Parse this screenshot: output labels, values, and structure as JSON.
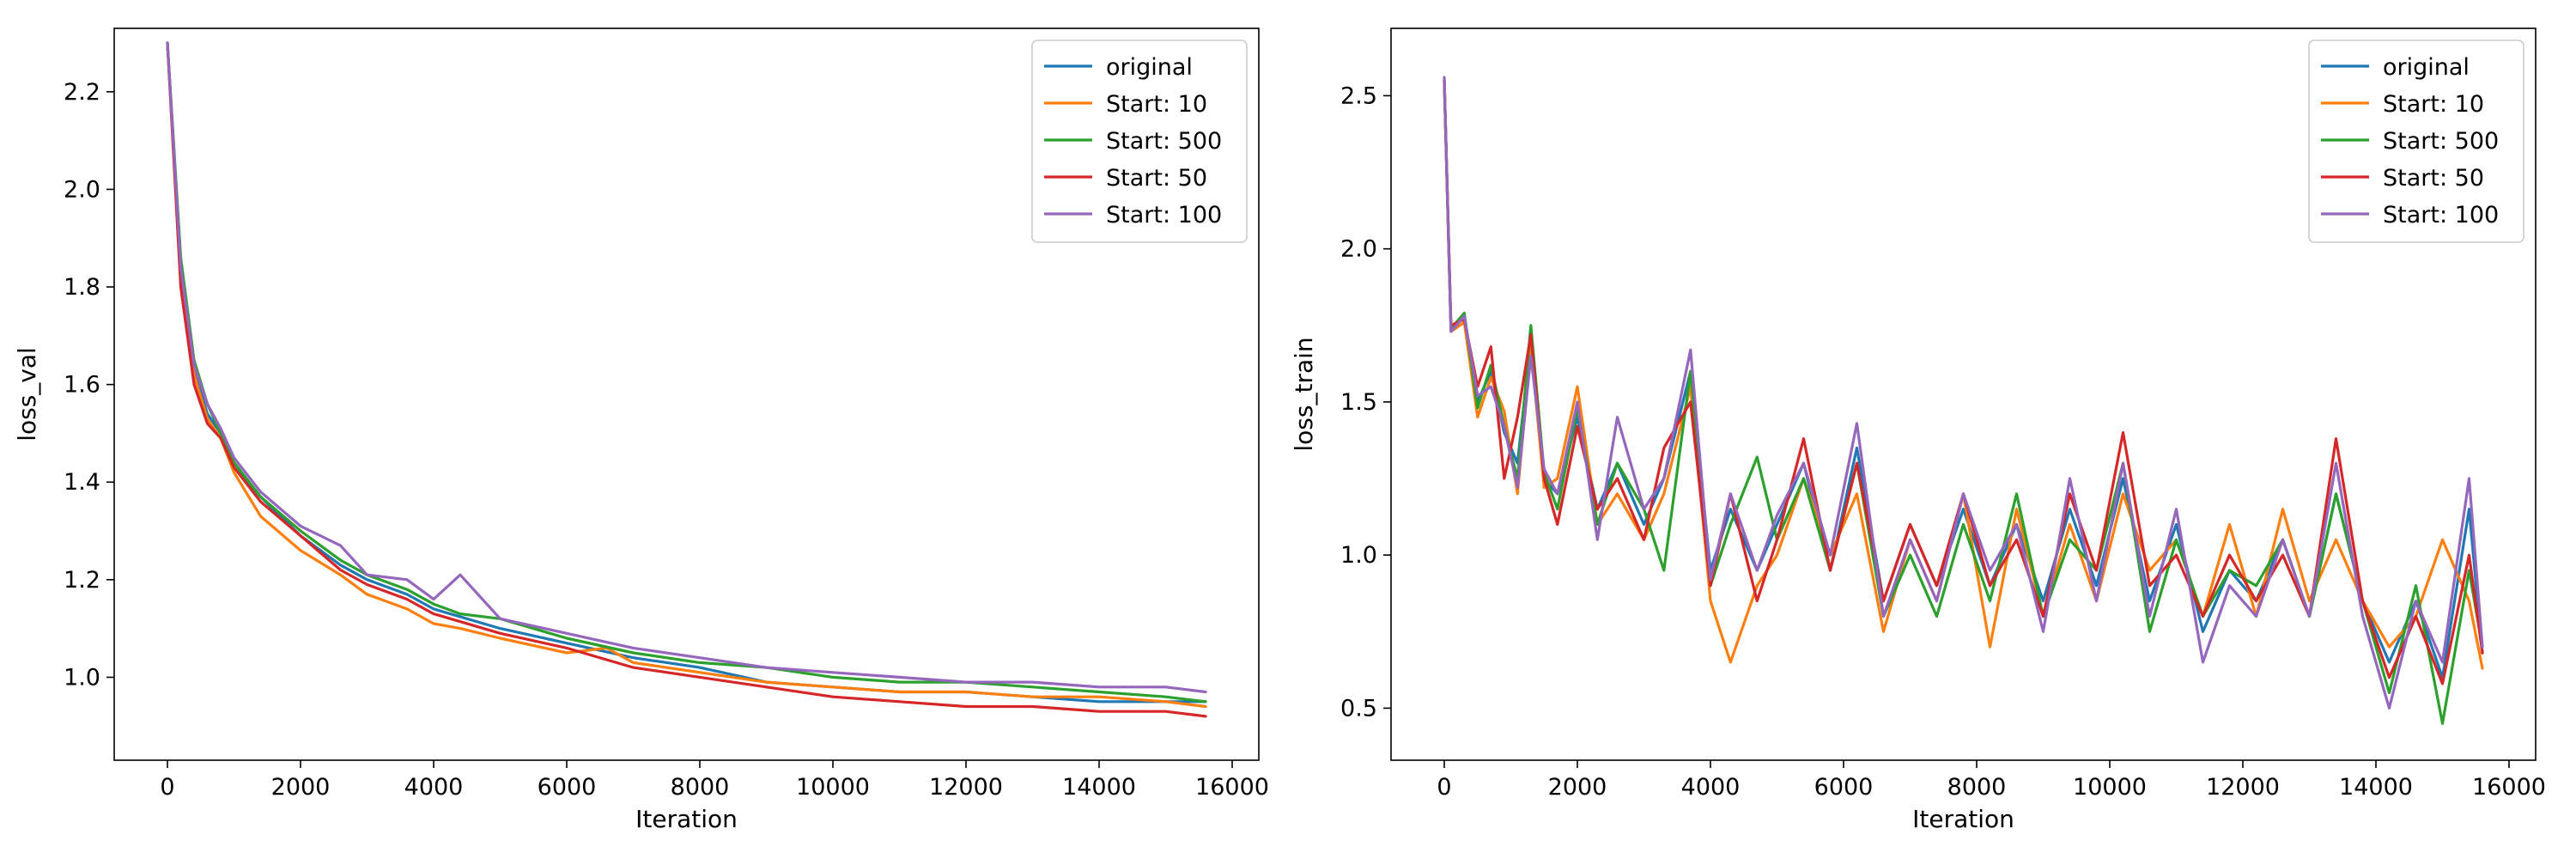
{
  "colors": {
    "original": "#1f77b4",
    "start10": "#ff7f0e",
    "start500": "#2ca02c",
    "start50": "#d62728",
    "start100": "#9467bd"
  },
  "chart_data": [
    {
      "type": "line",
      "title": "",
      "xlabel": "Iteration",
      "ylabel": "loss_val",
      "xlim": [
        -800,
        16400
      ],
      "ylim": [
        0.83,
        2.33
      ],
      "xticks": [
        0,
        2000,
        4000,
        6000,
        8000,
        10000,
        12000,
        14000,
        16000
      ],
      "yticks": [
        1.0,
        1.2,
        1.4,
        1.6,
        1.8,
        2.0,
        2.2
      ],
      "ytick_decimals": 1,
      "grid": false,
      "legend": "top-right",
      "series": [
        {
          "name": "original",
          "color": "#1f77b4",
          "x": [
            0,
            200,
            400,
            600,
            800,
            1000,
            1400,
            2000,
            2600,
            3000,
            3600,
            4000,
            5000,
            6000,
            7000,
            8000,
            9000,
            10000,
            11000,
            12000,
            13000,
            14000,
            15000,
            15600
          ],
          "y": [
            2.3,
            1.83,
            1.63,
            1.54,
            1.5,
            1.43,
            1.37,
            1.29,
            1.23,
            1.2,
            1.17,
            1.14,
            1.1,
            1.07,
            1.04,
            1.02,
            0.99,
            0.98,
            0.97,
            0.97,
            0.96,
            0.95,
            0.95,
            0.95
          ]
        },
        {
          "name": "Start: 10",
          "color": "#ff7f0e",
          "x": [
            0,
            200,
            400,
            600,
            800,
            1000,
            1400,
            2000,
            2600,
            3000,
            3600,
            4000,
            4400,
            5000,
            6000,
            6600,
            7000,
            8000,
            9000,
            10000,
            11000,
            12000,
            13000,
            14000,
            15000,
            15600
          ],
          "y": [
            2.3,
            1.82,
            1.62,
            1.53,
            1.49,
            1.42,
            1.33,
            1.26,
            1.21,
            1.17,
            1.14,
            1.11,
            1.1,
            1.08,
            1.05,
            1.06,
            1.03,
            1.01,
            0.99,
            0.98,
            0.97,
            0.97,
            0.96,
            0.96,
            0.95,
            0.94
          ]
        },
        {
          "name": "Start: 500",
          "color": "#2ca02c",
          "x": [
            0,
            200,
            400,
            600,
            800,
            1000,
            1400,
            2000,
            2600,
            3000,
            3600,
            4000,
            4400,
            5000,
            6000,
            7000,
            8000,
            9000,
            10000,
            11000,
            12000,
            13000,
            14000,
            15000,
            15600
          ],
          "y": [
            2.3,
            1.86,
            1.65,
            1.56,
            1.5,
            1.44,
            1.37,
            1.3,
            1.24,
            1.21,
            1.18,
            1.15,
            1.13,
            1.12,
            1.08,
            1.05,
            1.03,
            1.02,
            1.0,
            0.99,
            0.99,
            0.98,
            0.97,
            0.96,
            0.95
          ]
        },
        {
          "name": "Start: 50",
          "color": "#d62728",
          "x": [
            0,
            200,
            400,
            600,
            800,
            1000,
            1400,
            2000,
            2600,
            3000,
            3600,
            4000,
            5000,
            6000,
            7000,
            8000,
            9000,
            10000,
            11000,
            12000,
            13000,
            14000,
            15000,
            15600
          ],
          "y": [
            2.3,
            1.8,
            1.6,
            1.52,
            1.49,
            1.43,
            1.36,
            1.29,
            1.22,
            1.19,
            1.16,
            1.13,
            1.09,
            1.06,
            1.02,
            1.0,
            0.98,
            0.96,
            0.95,
            0.94,
            0.94,
            0.93,
            0.93,
            0.92
          ]
        },
        {
          "name": "Start: 100",
          "color": "#9467bd",
          "x": [
            0,
            200,
            400,
            600,
            800,
            1000,
            1400,
            2000,
            2600,
            3000,
            3600,
            4000,
            4400,
            5000,
            6000,
            7000,
            8000,
            9000,
            10000,
            11000,
            12000,
            13000,
            14000,
            15000,
            15600
          ],
          "y": [
            2.3,
            1.84,
            1.64,
            1.56,
            1.51,
            1.45,
            1.38,
            1.31,
            1.27,
            1.21,
            1.2,
            1.16,
            1.21,
            1.12,
            1.09,
            1.06,
            1.04,
            1.02,
            1.01,
            1.0,
            0.99,
            0.99,
            0.98,
            0.98,
            0.97
          ]
        }
      ]
    },
    {
      "type": "line",
      "title": "",
      "xlabel": "Iteration",
      "ylabel": "loss_train",
      "xlim": [
        -800,
        16400
      ],
      "ylim": [
        0.33,
        2.72
      ],
      "xticks": [
        0,
        2000,
        4000,
        6000,
        8000,
        10000,
        12000,
        14000,
        16000
      ],
      "yticks": [
        0.5,
        1.0,
        1.5,
        2.0,
        2.5
      ],
      "ytick_decimals": 1,
      "grid": false,
      "legend": "top-right",
      "series": [
        {
          "name": "original",
          "color": "#1f77b4",
          "x": [
            0,
            100,
            300,
            500,
            700,
            900,
            1100,
            1300,
            1500,
            1700,
            2000,
            2300,
            2600,
            3000,
            3300,
            3700,
            4000,
            4300,
            4700,
            5000,
            5400,
            5800,
            6200,
            6600,
            7000,
            7400,
            7800,
            8200,
            8600,
            9000,
            9400,
            9800,
            10200,
            10600,
            11000,
            11400,
            11800,
            12200,
            12600,
            13000,
            13400,
            13800,
            14200,
            14600,
            15000,
            15400,
            15600
          ],
          "y": [
            2.55,
            1.74,
            1.78,
            1.5,
            1.6,
            1.4,
            1.3,
            1.7,
            1.25,
            1.2,
            1.45,
            1.15,
            1.3,
            1.1,
            1.25,
            1.6,
            0.95,
            1.15,
            0.95,
            1.1,
            1.3,
            0.95,
            1.35,
            0.85,
            1.1,
            0.9,
            1.15,
            0.9,
            1.1,
            0.85,
            1.15,
            0.9,
            1.25,
            0.85,
            1.1,
            0.75,
            0.95,
            0.85,
            1.05,
            0.8,
            1.2,
            0.85,
            0.65,
            0.85,
            0.6,
            1.15,
            0.68
          ]
        },
        {
          "name": "Start: 10",
          "color": "#ff7f0e",
          "x": [
            0,
            100,
            300,
            500,
            700,
            900,
            1100,
            1300,
            1500,
            1700,
            2000,
            2300,
            2600,
            3000,
            3300,
            3700,
            4000,
            4300,
            4700,
            5000,
            5400,
            5800,
            6200,
            6600,
            7000,
            7400,
            7800,
            8200,
            8600,
            9000,
            9400,
            9800,
            10200,
            10600,
            11000,
            11400,
            11800,
            12200,
            12600,
            13000,
            13400,
            13800,
            14200,
            14600,
            15000,
            15400,
            15600
          ],
          "y": [
            2.55,
            1.73,
            1.76,
            1.45,
            1.58,
            1.47,
            1.2,
            1.68,
            1.22,
            1.25,
            1.55,
            1.1,
            1.2,
            1.05,
            1.2,
            1.55,
            0.85,
            0.65,
            0.9,
            1.0,
            1.25,
            1.0,
            1.2,
            0.75,
            1.05,
            0.85,
            1.2,
            0.7,
            1.15,
            0.8,
            1.1,
            0.85,
            1.2,
            0.95,
            1.05,
            0.8,
            1.1,
            0.8,
            1.15,
            0.85,
            1.05,
            0.85,
            0.7,
            0.8,
            1.05,
            0.85,
            0.63
          ]
        },
        {
          "name": "Start: 500",
          "color": "#2ca02c",
          "x": [
            0,
            100,
            300,
            500,
            700,
            900,
            1100,
            1300,
            1500,
            1700,
            2000,
            2300,
            2600,
            3000,
            3300,
            3700,
            4000,
            4300,
            4700,
            5000,
            5400,
            5800,
            6200,
            6600,
            7000,
            7400,
            7800,
            8200,
            8600,
            9000,
            9400,
            9800,
            10200,
            10600,
            11000,
            11400,
            11800,
            12200,
            12600,
            13000,
            13400,
            13800,
            14200,
            14600,
            15000,
            15400,
            15600
          ],
          "y": [
            2.55,
            1.74,
            1.79,
            1.48,
            1.62,
            1.42,
            1.25,
            1.75,
            1.27,
            1.15,
            1.48,
            1.1,
            1.3,
            1.15,
            0.95,
            1.6,
            0.9,
            1.1,
            1.32,
            1.05,
            1.25,
            0.95,
            1.3,
            0.8,
            1.0,
            0.8,
            1.1,
            0.85,
            1.2,
            0.8,
            1.05,
            0.95,
            1.3,
            0.75,
            1.05,
            0.8,
            0.95,
            0.9,
            1.05,
            0.8,
            1.2,
            0.85,
            0.55,
            0.9,
            0.45,
            0.95,
            0.7
          ]
        },
        {
          "name": "Start: 50",
          "color": "#d62728",
          "x": [
            0,
            100,
            300,
            500,
            700,
            900,
            1100,
            1300,
            1500,
            1700,
            2000,
            2300,
            2600,
            3000,
            3300,
            3700,
            4000,
            4300,
            4700,
            5000,
            5400,
            5800,
            6200,
            6600,
            7000,
            7400,
            7800,
            8200,
            8600,
            9000,
            9400,
            9800,
            10200,
            10600,
            11000,
            11400,
            11800,
            12200,
            12600,
            13000,
            13400,
            13800,
            14200,
            14600,
            15000,
            15400,
            15600
          ],
          "y": [
            2.55,
            1.75,
            1.77,
            1.55,
            1.68,
            1.25,
            1.45,
            1.72,
            1.25,
            1.1,
            1.42,
            1.15,
            1.25,
            1.05,
            1.35,
            1.5,
            0.9,
            1.2,
            0.85,
            1.05,
            1.38,
            0.95,
            1.3,
            0.85,
            1.1,
            0.9,
            1.2,
            0.9,
            1.05,
            0.8,
            1.2,
            0.95,
            1.4,
            0.9,
            1.0,
            0.8,
            1.0,
            0.85,
            1.0,
            0.8,
            1.38,
            0.85,
            0.6,
            0.8,
            0.58,
            1.0,
            0.68
          ]
        },
        {
          "name": "Start: 100",
          "color": "#9467bd",
          "x": [
            0,
            100,
            300,
            500,
            700,
            900,
            1100,
            1300,
            1500,
            1700,
            2000,
            2300,
            2600,
            3000,
            3300,
            3700,
            4000,
            4300,
            4700,
            5000,
            5400,
            5800,
            6200,
            6600,
            7000,
            7400,
            7800,
            8200,
            8600,
            9000,
            9400,
            9800,
            10200,
            10600,
            11000,
            11400,
            11800,
            12200,
            12600,
            13000,
            13400,
            13800,
            14200,
            14600,
            15000,
            15400,
            15600
          ],
          "y": [
            2.56,
            1.73,
            1.78,
            1.52,
            1.55,
            1.42,
            1.22,
            1.65,
            1.28,
            1.2,
            1.5,
            1.05,
            1.45,
            1.15,
            1.25,
            1.67,
            0.92,
            1.2,
            0.95,
            1.13,
            1.3,
            1.0,
            1.43,
            0.8,
            1.05,
            0.85,
            1.2,
            0.95,
            1.1,
            0.75,
            1.25,
            0.85,
            1.3,
            0.8,
            1.15,
            0.65,
            0.9,
            0.8,
            1.05,
            0.8,
            1.3,
            0.8,
            0.5,
            0.85,
            0.65,
            1.25,
            0.7
          ]
        }
      ]
    }
  ]
}
